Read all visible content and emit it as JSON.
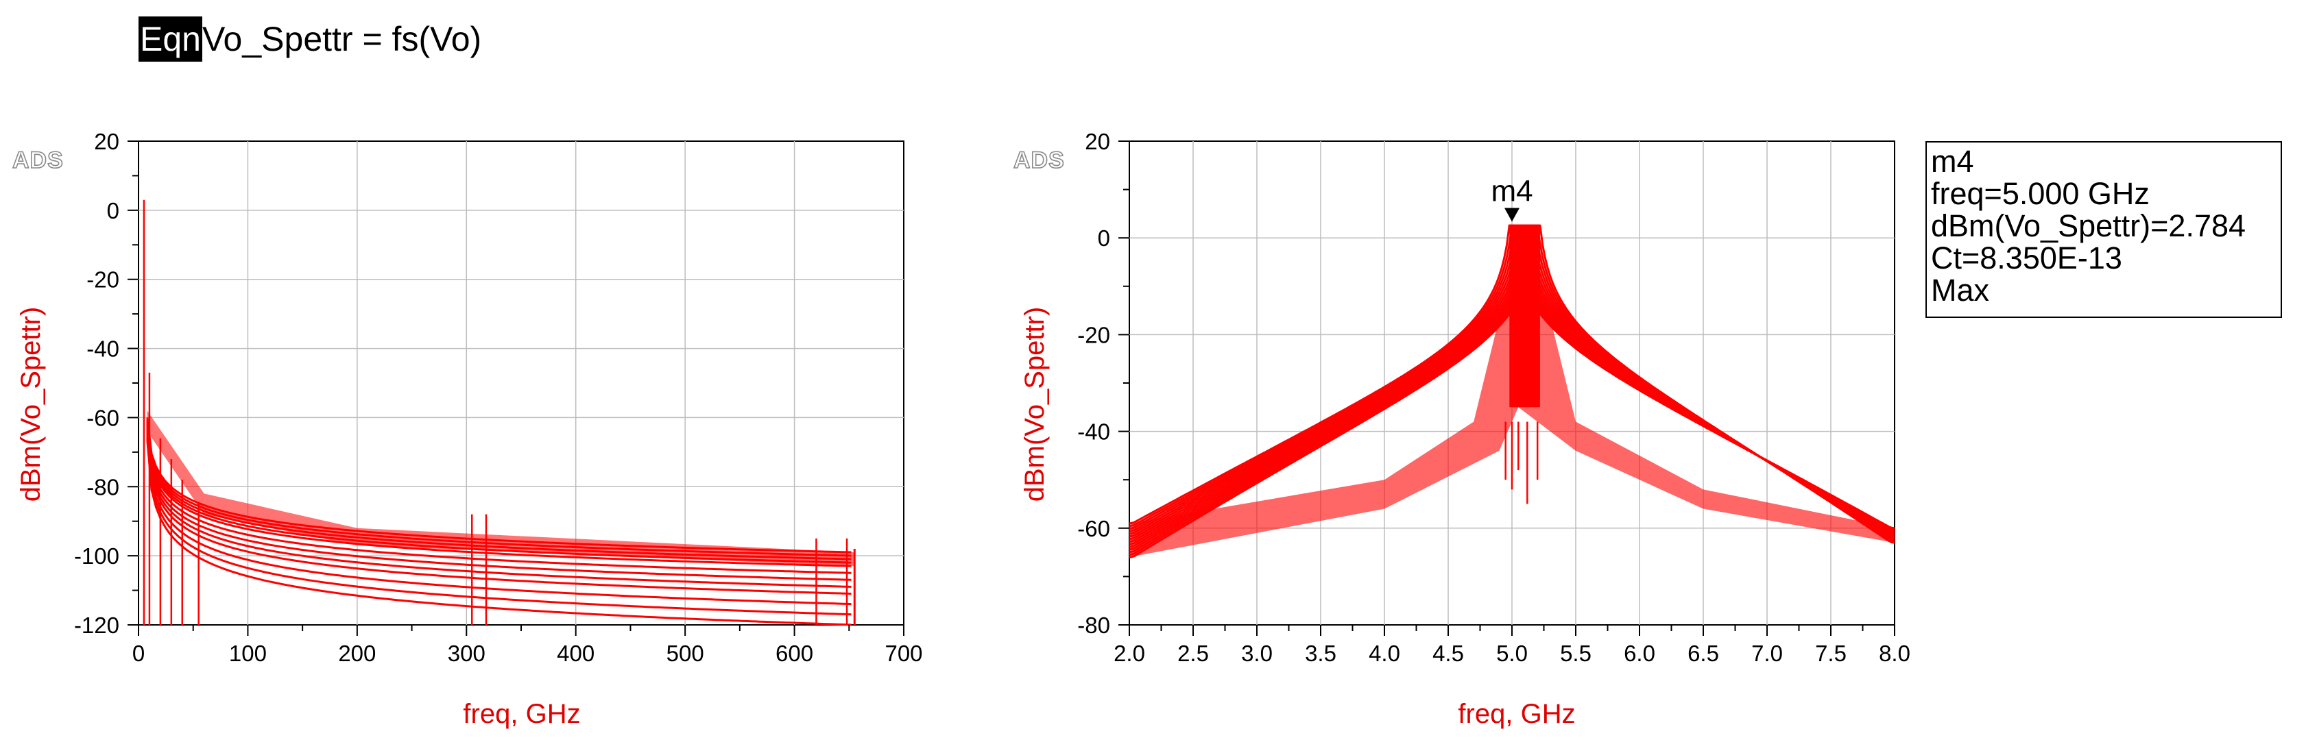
{
  "equation": {
    "tag": "Eqn",
    "text": "Vo_Spettr = fs(Vo)"
  },
  "logo": "ADS",
  "marker_readout": {
    "name": "m4",
    "freq": "freq=5.000 GHz",
    "value": "dBm(Vo_Spettr)=2.784",
    "param": "Ct=8.350E-13",
    "mode": "Max"
  },
  "chart_data": [
    {
      "type": "line",
      "xlabel": "freq, GHz",
      "ylabel": "dBm(Vo_Spettr)",
      "xlim": [
        0,
        700
      ],
      "ylim": [
        -120,
        20
      ],
      "x_ticks": [
        "0",
        "100",
        "200",
        "300",
        "400",
        "500",
        "600",
        "700"
      ],
      "y_ticks": [
        "20",
        "0",
        "-20",
        "-40",
        "-60",
        "-80",
        "-100",
        "-120"
      ],
      "grid": true,
      "series_color": "#ff0000",
      "x_range_of_data": [
        0,
        655
      ],
      "sweep_end_levels_dBm": [
        -99,
        -100,
        -101,
        -102,
        -103,
        -105,
        -107,
        -109,
        -111,
        -114,
        -117,
        -120
      ],
      "peak_at_5GHz_dBm": 3
    },
    {
      "type": "line",
      "xlabel": "freq, GHz",
      "ylabel": "dBm(Vo_Spettr)",
      "xlim": [
        2.0,
        8.0
      ],
      "ylim": [
        -80,
        20
      ],
      "x_ticks": [
        "2.0",
        "2.5",
        "3.0",
        "3.5",
        "4.0",
        "4.5",
        "5.0",
        "5.5",
        "6.0",
        "6.5",
        "7.0",
        "7.5",
        "8.0"
      ],
      "y_ticks": [
        "20",
        "0",
        "-20",
        "-40",
        "-60",
        "-80"
      ],
      "grid": true,
      "series_color": "#ff0000",
      "peak_freq_range_GHz": [
        4.98,
        5.22
      ],
      "peak_dBm": 2.784,
      "left_edge_levels_dBm": [
        -59,
        -66
      ],
      "right_edge_levels_dBm": [
        -60,
        -63
      ],
      "marker": {
        "label": "m4",
        "x": 5.0,
        "y": 2.784
      }
    }
  ]
}
